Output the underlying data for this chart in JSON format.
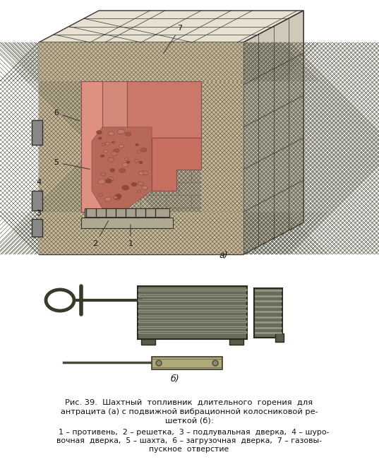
{
  "title": "",
  "bg_color": "#ffffff",
  "caption_line1": "Рис. 39.  Шахтный  топливник  длительного  горения  для",
  "caption_line2": "антрацита (а) с подвижной вибрационной колосниковой ре-",
  "caption_line3": "шеткой (б):",
  "caption_line4": "    1 – противень,  2 – решетка,  3 – подлувальная  дверка,  4 – шуро-",
  "caption_line5": "вочная  дверка,  5 – шахта,  6 – загрузочная  дверка,  7 – газовы-",
  "caption_line6": "пускное  отверстие",
  "label_a": "а)",
  "label_b": "б)",
  "hatching_color": "#555555",
  "brick_color": "#c8a882",
  "inner_pink": "#e8a090",
  "coal_color": "#c87060",
  "wall_bg": "#d0c0a0",
  "dark_gray": "#333333",
  "grate_color": "#4a4a4a",
  "grate_bg": "#8a8a72",
  "rod_color": "#5a5a4a"
}
